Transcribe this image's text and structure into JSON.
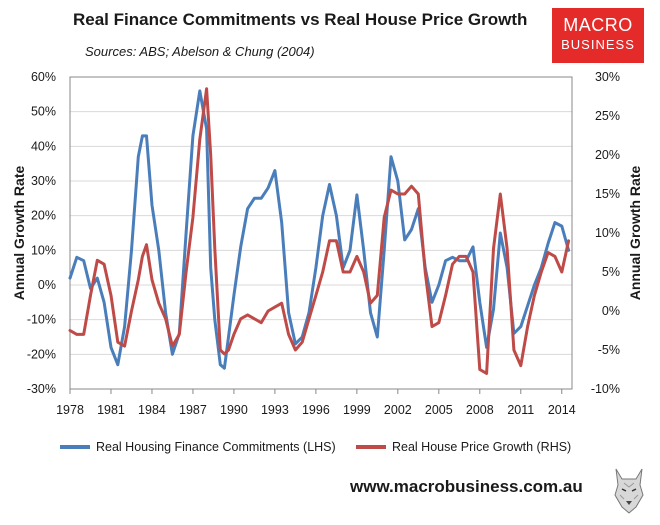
{
  "header": {
    "title": "Real Finance Commitments vs Real House Price Growth",
    "sources": "Sources: ABS; Abelson & Chung (2004)"
  },
  "logo": {
    "line1": "MACRO",
    "line2": "BUSINESS"
  },
  "footer": {
    "url": "www.macrobusiness.com.au"
  },
  "colors": {
    "series1": "#4a7ebb",
    "series2": "#be4b48",
    "grid": "#d9d9d9",
    "axis": "#888888",
    "logo_bg": "#e52b2a"
  },
  "chart_data": {
    "type": "line",
    "title": "Real Finance Commitments vs Real House Price Growth",
    "x_ticks": [
      "1978",
      "1981",
      "1984",
      "1987",
      "1990",
      "1993",
      "1996",
      "1999",
      "2002",
      "2005",
      "2008",
      "2011",
      "2014"
    ],
    "xlim": [
      1978,
      2014.75
    ],
    "y_left": {
      "label": "Annual Growth Rate",
      "lim": [
        -30,
        60
      ],
      "ticks": [
        -30,
        -20,
        -10,
        0,
        10,
        20,
        30,
        40,
        50,
        60
      ],
      "tick_labels": [
        "-30%",
        "-20%",
        "-10%",
        "0%",
        "10%",
        "20%",
        "30%",
        "40%",
        "50%",
        "60%"
      ]
    },
    "y_right": {
      "label": "Annual Growth Rate",
      "lim": [
        -10,
        30
      ],
      "ticks": [
        -10,
        -5,
        0,
        5,
        10,
        15,
        20,
        25,
        30
      ],
      "tick_labels": [
        "-10%",
        "-5%",
        "0%",
        "5%",
        "10%",
        "15%",
        "20%",
        "25%",
        "30%"
      ]
    },
    "series": [
      {
        "name": "Real Housing Finance Commitments (LHS)",
        "axis": "left",
        "x": [
          1978,
          1978.5,
          1979,
          1979.5,
          1980,
          1980.5,
          1981,
          1981.5,
          1982,
          1982.5,
          1983,
          1983.3,
          1983.6,
          1984,
          1984.5,
          1985,
          1985.5,
          1986,
          1986.5,
          1987,
          1987.5,
          1988,
          1988.3,
          1988.6,
          1989,
          1989.3,
          1989.6,
          1990,
          1990.5,
          1991,
          1991.5,
          1992,
          1992.5,
          1993,
          1993.5,
          1994,
          1994.5,
          1995,
          1995.5,
          1996,
          1996.5,
          1997,
          1997.5,
          1998,
          1998.5,
          1999,
          1999.5,
          2000,
          2000.5,
          2001,
          2001.5,
          2002,
          2002.5,
          2003,
          2003.5,
          2004,
          2004.5,
          2005,
          2005.5,
          2006,
          2006.5,
          2007,
          2007.5,
          2008,
          2008.5,
          2009,
          2009.5,
          2010,
          2010.5,
          2011,
          2011.5,
          2012,
          2012.5,
          2013,
          2013.5,
          2014,
          2014.5
        ],
        "values": [
          2,
          8,
          7,
          -1,
          2,
          -5,
          -18,
          -23,
          -12,
          10,
          37,
          43,
          43,
          23,
          10,
          -8,
          -20,
          -14,
          15,
          43,
          56,
          45,
          5,
          -10,
          -23,
          -24,
          -15,
          -3,
          11,
          22,
          25,
          25,
          28,
          33,
          18,
          -8,
          -17,
          -15,
          -8,
          5,
          20,
          29,
          20,
          5,
          10,
          26,
          10,
          -8,
          -15,
          10,
          37,
          30,
          13,
          16,
          22,
          5,
          -5,
          0,
          7,
          8,
          7,
          7,
          11,
          -5,
          -18,
          -7,
          15,
          5,
          -14,
          -12,
          -6,
          0,
          5,
          12,
          18,
          17,
          10
        ]
      },
      {
        "name": "Real House Price Growth (RHS)",
        "axis": "right",
        "x": [
          1978,
          1978.5,
          1979,
          1979.5,
          1980,
          1980.5,
          1981,
          1981.5,
          1982,
          1982.5,
          1983,
          1983.3,
          1983.6,
          1984,
          1984.5,
          1985,
          1985.5,
          1986,
          1986.5,
          1987,
          1987.5,
          1988,
          1988.3,
          1988.6,
          1989,
          1989.3,
          1989.6,
          1990,
          1990.5,
          1991,
          1991.5,
          1992,
          1992.5,
          1993,
          1993.5,
          1994,
          1994.5,
          1995,
          1995.5,
          1996,
          1996.5,
          1997,
          1997.5,
          1998,
          1998.5,
          1999,
          1999.5,
          2000,
          2000.5,
          2001,
          2001.5,
          2002,
          2002.5,
          2003,
          2003.5,
          2004,
          2004.5,
          2005,
          2005.5,
          2006,
          2006.5,
          2007,
          2007.5,
          2008,
          2008.5,
          2009,
          2009.5,
          2010,
          2010.5,
          2011,
          2011.5,
          2012,
          2012.5,
          2013,
          2013.5,
          2014,
          2014.5
        ],
        "values": [
          -2.5,
          -3,
          -3,
          2,
          6.5,
          6,
          2,
          -4,
          -4.5,
          0,
          4,
          7,
          8.5,
          4,
          1,
          -1,
          -4.5,
          -3,
          5,
          12,
          22,
          28.5,
          20,
          8,
          -5,
          -5.5,
          -5,
          -3,
          -1,
          -0.5,
          -1,
          -1.5,
          0,
          0.5,
          1,
          -3,
          -5,
          -4,
          -1,
          2,
          5,
          9,
          9,
          5,
          5,
          7,
          5,
          1,
          2,
          12,
          15.5,
          15,
          15,
          16,
          15,
          5,
          -2,
          -1.5,
          2,
          6,
          7,
          7,
          5,
          -7.5,
          -8,
          8,
          15,
          8,
          -5,
          -7,
          -2,
          2,
          5,
          7.5,
          7,
          5,
          9
        ]
      }
    ]
  }
}
